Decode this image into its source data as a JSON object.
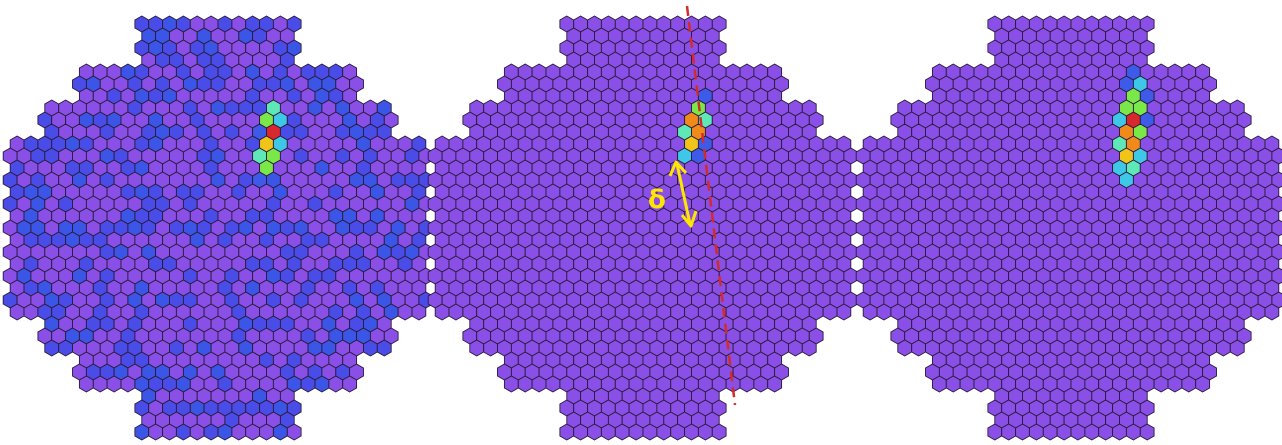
{
  "colors": {
    "background": "#ffffff",
    "hex_base": "#8a4fe6",
    "hex_outline": "#2a1a3a",
    "noise_blue": "#4a4ce8",
    "noise_deep_blue": "#3b55e6",
    "signal_scale": [
      "#3d5ae8",
      "#3fc7e8",
      "#5ee8b8",
      "#7be84a",
      "#f0c419",
      "#f08a1a",
      "#d9272e"
    ],
    "fit_line": "#d22b2b",
    "arrow": "#ffe600",
    "label": "#ffe600"
  },
  "panels": [
    {
      "name": "noisy-camera-image",
      "noise": "high"
    },
    {
      "name": "cleaned-camera-image",
      "noise": "none",
      "has_axis": true,
      "has_delta_arrow": true
    },
    {
      "name": "model-camera-image",
      "noise": "none"
    }
  ],
  "annotation": {
    "delta_symbol": "δ"
  },
  "icons": {
    "arrow": "double-headed-arrow-icon",
    "line": "dashed-line"
  }
}
